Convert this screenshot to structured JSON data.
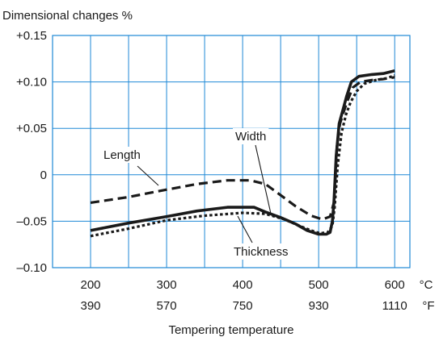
{
  "chart_data": {
    "type": "line",
    "ylabel": "Dimensional changes %",
    "xlabel": "Tempering temperature",
    "x_unit_primary": "°C",
    "x_unit_secondary": "°F",
    "xlim": [
      150,
      620
    ],
    "ylim": [
      -0.1,
      0.15
    ],
    "x_ticks": [
      {
        "c": 200,
        "c_label": "200",
        "f_label": "390"
      },
      {
        "c": 300,
        "c_label": "300",
        "f_label": "570"
      },
      {
        "c": 400,
        "c_label": "400",
        "f_label": "750"
      },
      {
        "c": 500,
        "c_label": "500",
        "f_label": "930"
      },
      {
        "c": 600,
        "c_label": "600",
        "f_label": "1110"
      }
    ],
    "y_ticks": [
      {
        "v": 0.15,
        "label": "+0.15"
      },
      {
        "v": 0.1,
        "label": "+0.10"
      },
      {
        "v": 0.05,
        "label": "+0.05"
      },
      {
        "v": 0.0,
        "label": "0"
      },
      {
        "v": -0.05,
        "label": "–0.05"
      },
      {
        "v": -0.1,
        "label": "–0.10"
      }
    ],
    "grid": true,
    "grid_color": "#1e88d6",
    "line_color": "#1a1a1a",
    "series": [
      {
        "name": "Length",
        "style": "dashed",
        "points": [
          [
            200,
            -0.03
          ],
          [
            250,
            -0.024
          ],
          [
            300,
            -0.016
          ],
          [
            340,
            -0.01
          ],
          [
            380,
            -0.006
          ],
          [
            410,
            -0.006
          ],
          [
            430,
            -0.01
          ],
          [
            450,
            -0.022
          ],
          [
            470,
            -0.034
          ],
          [
            490,
            -0.044
          ],
          [
            505,
            -0.048
          ],
          [
            515,
            -0.045
          ],
          [
            520,
            -0.03
          ],
          [
            522,
            -0.005
          ],
          [
            524,
            0.03
          ],
          [
            528,
            0.055
          ],
          [
            533,
            0.068
          ],
          [
            538,
            0.08
          ],
          [
            545,
            0.094
          ],
          [
            555,
            0.1
          ],
          [
            570,
            0.102
          ],
          [
            585,
            0.103
          ],
          [
            600,
            0.105
          ]
        ]
      },
      {
        "name": "Width",
        "style": "solid",
        "points": [
          [
            200,
            -0.06
          ],
          [
            250,
            -0.052
          ],
          [
            300,
            -0.045
          ],
          [
            340,
            -0.039
          ],
          [
            380,
            -0.035
          ],
          [
            415,
            -0.035
          ],
          [
            430,
            -0.04
          ],
          [
            450,
            -0.046
          ],
          [
            470,
            -0.053
          ],
          [
            485,
            -0.06
          ],
          [
            500,
            -0.064
          ],
          [
            510,
            -0.064
          ],
          [
            515,
            -0.062
          ],
          [
            518,
            -0.05
          ],
          [
            520,
            -0.03
          ],
          [
            523,
            0.02
          ],
          [
            527,
            0.055
          ],
          [
            532,
            0.07
          ],
          [
            537,
            0.085
          ],
          [
            543,
            0.1
          ],
          [
            553,
            0.106
          ],
          [
            570,
            0.108
          ],
          [
            585,
            0.109
          ],
          [
            600,
            0.112
          ]
        ]
      },
      {
        "name": "Thickness",
        "style": "dotted",
        "points": [
          [
            200,
            -0.066
          ],
          [
            250,
            -0.058
          ],
          [
            300,
            -0.049
          ],
          [
            350,
            -0.044
          ],
          [
            400,
            -0.041
          ],
          [
            430,
            -0.042
          ],
          [
            455,
            -0.048
          ],
          [
            475,
            -0.055
          ],
          [
            490,
            -0.06
          ],
          [
            502,
            -0.063
          ],
          [
            512,
            -0.062
          ],
          [
            518,
            -0.055
          ],
          [
            521,
            -0.035
          ],
          [
            525,
            0.01
          ],
          [
            530,
            0.045
          ],
          [
            536,
            0.065
          ],
          [
            542,
            0.078
          ],
          [
            550,
            0.09
          ],
          [
            560,
            0.098
          ],
          [
            575,
            0.102
          ],
          [
            590,
            0.104
          ],
          [
            600,
            0.107
          ]
        ]
      }
    ],
    "annotations": [
      {
        "text": "Length",
        "series": "Length"
      },
      {
        "text": "Width",
        "series": "Width"
      },
      {
        "text": "Thickness",
        "series": "Thickness"
      }
    ]
  }
}
